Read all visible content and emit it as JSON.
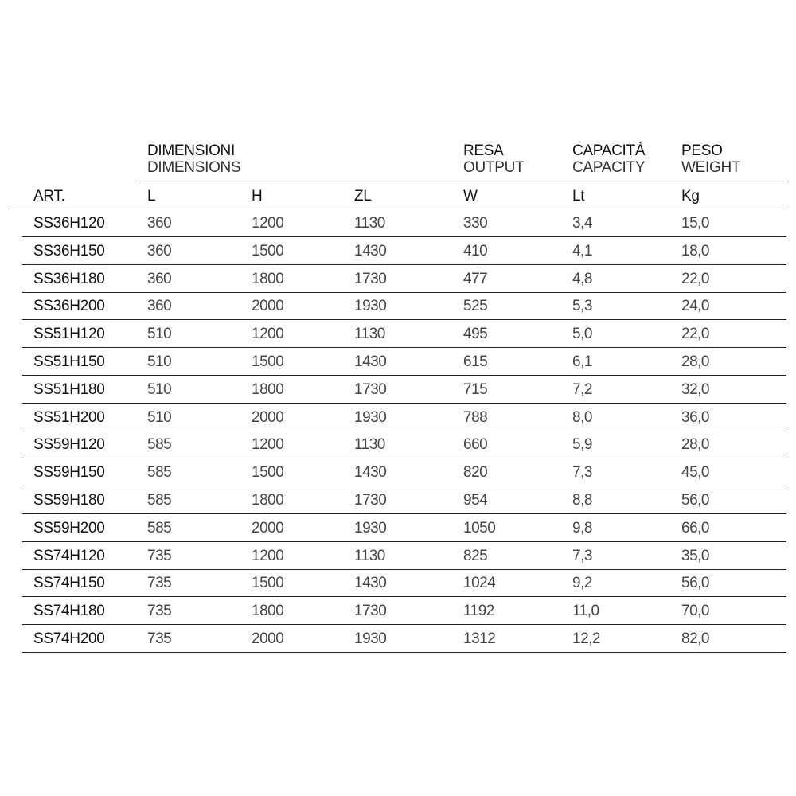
{
  "header": {
    "groups": [
      {
        "it": "DIMENSIONI",
        "en": "DIMENSIONS"
      },
      {
        "it": "RESA",
        "en": "OUTPUT"
      },
      {
        "it": "CAPACITÀ",
        "en": "CAPACITY"
      },
      {
        "it": "PESO",
        "en": "WEIGHT"
      }
    ],
    "columns": [
      "ART.",
      "L",
      "H",
      "ZL",
      "W",
      "Lt",
      "Kg"
    ]
  },
  "rows": [
    [
      "SS36H120",
      "360",
      "1200",
      "1130",
      "330",
      "3,4",
      "15,0"
    ],
    [
      "SS36H150",
      "360",
      "1500",
      "1430",
      "410",
      "4,1",
      "18,0"
    ],
    [
      "SS36H180",
      "360",
      "1800",
      "1730",
      "477",
      "4,8",
      "22,0"
    ],
    [
      "SS36H200",
      "360",
      "2000",
      "1930",
      "525",
      "5,3",
      "24,0"
    ],
    [
      "SS51H120",
      "510",
      "1200",
      "1130",
      "495",
      "5,0",
      "22,0"
    ],
    [
      "SS51H150",
      "510",
      "1500",
      "1430",
      "615",
      "6,1",
      "28,0"
    ],
    [
      "SS51H180",
      "510",
      "1800",
      "1730",
      "715",
      "7,2",
      "32,0"
    ],
    [
      "SS51H200",
      "510",
      "2000",
      "1930",
      "788",
      "8,0",
      "36,0"
    ],
    [
      "SS59H120",
      "585",
      "1200",
      "1130",
      "660",
      "5,9",
      "28,0"
    ],
    [
      "SS59H150",
      "585",
      "1500",
      "1430",
      "820",
      "7,3",
      "45,0"
    ],
    [
      "SS59H180",
      "585",
      "1800",
      "1730",
      "954",
      "8,8",
      "56,0"
    ],
    [
      "SS59H200",
      "585",
      "2000",
      "1930",
      "1050",
      "9,8",
      "66,0"
    ],
    [
      "SS74H120",
      "735",
      "1200",
      "1130",
      "825",
      "7,3",
      "35,0"
    ],
    [
      "SS74H150",
      "735",
      "1500",
      "1430",
      "1024",
      "9,2",
      "56,0"
    ],
    [
      "SS74H180",
      "735",
      "1800",
      "1730",
      "1192",
      "11,0",
      "70,0"
    ],
    [
      "SS74H200",
      "735",
      "2000",
      "1930",
      "1312",
      "12,2",
      "82,0"
    ]
  ]
}
